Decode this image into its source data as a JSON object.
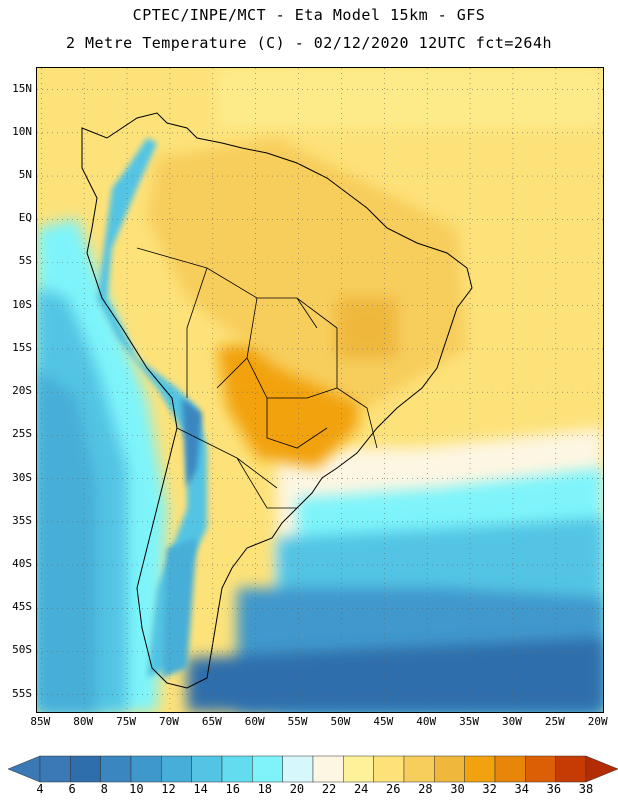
{
  "header": {
    "line1": "CPTEC/INPE/MCT -  Eta Model 15km - GFS",
    "line2": "2 Metre Temperature (C) - 02/12/2020 12UTC fct=264h"
  },
  "axes": {
    "lat_labels": [
      "15N",
      "10N",
      "5N",
      "EQ",
      "5S",
      "10S",
      "15S",
      "20S",
      "25S",
      "30S",
      "35S",
      "40S",
      "45S",
      "50S",
      "55S"
    ],
    "lat_values": [
      15,
      10,
      5,
      0,
      -5,
      -10,
      -15,
      -20,
      -25,
      -30,
      -35,
      -40,
      -45,
      -50,
      -55
    ],
    "lon_labels": [
      "85W",
      "80W",
      "75W",
      "70W",
      "65W",
      "60W",
      "55W",
      "50W",
      "45W",
      "40W",
      "35W",
      "30W",
      "25W",
      "20W"
    ],
    "lon_values": [
      -85,
      -80,
      -75,
      -70,
      -65,
      -60,
      -55,
      -50,
      -45,
      -40,
      -35,
      -30,
      -25,
      -20
    ],
    "lat_range": [
      -57,
      17.5
    ],
    "lon_range": [
      -85.5,
      -19.5
    ]
  },
  "colorbar": {
    "labels": [
      "4",
      "6",
      "8",
      "10",
      "12",
      "14",
      "16",
      "18",
      "20",
      "22",
      "24",
      "26",
      "28",
      "30",
      "32",
      "34",
      "36",
      "38"
    ],
    "colors": [
      "#3a78b6",
      "#2f6eac",
      "#3a86c0",
      "#3f98cc",
      "#46aed8",
      "#53c4e4",
      "#63dcef",
      "#7ef4fa",
      "#d6f8fc",
      "#fdf6e2",
      "#fdf29a",
      "#fde27a",
      "#f7cd5b",
      "#efb83d",
      "#f2a20f",
      "#e8860a",
      "#dd5f05",
      "#c63a03",
      "#b42c02"
    ]
  }
}
